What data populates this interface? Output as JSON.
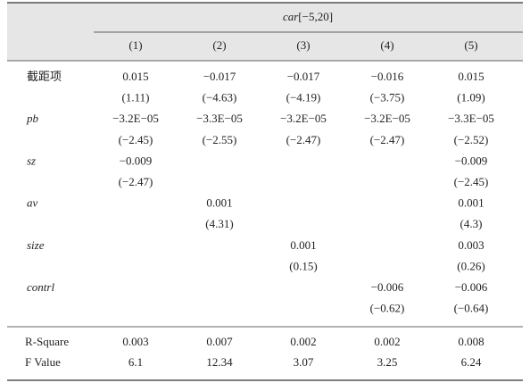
{
  "header": {
    "group_var": "car",
    "group_window": "[−5,20]",
    "columns": [
      "(1)",
      "(2)",
      "(3)",
      "(4)",
      "(5)"
    ]
  },
  "rows": [
    {
      "label": "截距项",
      "coef": [
        "0.015",
        "−0.017",
        "−0.017",
        "−0.016",
        "0.015"
      ],
      "t": [
        "(1.11)",
        "(−4.63)",
        "(−4.19)",
        "(−3.75)",
        "(1.09)"
      ]
    },
    {
      "label": "pb",
      "coef": [
        "−3.2E−05",
        "−3.3E−05",
        "−3.2E−05",
        "−3.2E−05",
        "−3.3E−05"
      ],
      "t": [
        "(−2.45)",
        "(−2.55)",
        "(−2.47)",
        "(−2.47)",
        "(−2.52)"
      ]
    },
    {
      "label": "sz",
      "coef": [
        "−0.009",
        null,
        null,
        null,
        "−0.009"
      ],
      "t": [
        "(−2.47)",
        null,
        null,
        null,
        "(−2.45)"
      ]
    },
    {
      "label": "av",
      "coef": [
        null,
        "0.001",
        null,
        null,
        "0.001"
      ],
      "t": [
        null,
        "(4.31)",
        null,
        null,
        "(4.3)"
      ]
    },
    {
      "label": "size",
      "coef": [
        null,
        null,
        "0.001",
        null,
        "0.003"
      ],
      "t": [
        null,
        null,
        "(0.15)",
        null,
        "(0.26)"
      ]
    },
    {
      "label": "contrl",
      "coef": [
        null,
        null,
        null,
        "−0.006",
        "−0.006"
      ],
      "t": [
        null,
        null,
        null,
        "(−0.62)",
        "(−0.64)"
      ]
    }
  ],
  "stats": [
    {
      "label": "R-Square",
      "values": [
        "0.003",
        "0.007",
        "0.002",
        "0.002",
        "0.008"
      ]
    },
    {
      "label": "F Value",
      "values": [
        "6.1",
        "12.34",
        "3.07",
        "3.25",
        "6.24"
      ]
    }
  ]
}
